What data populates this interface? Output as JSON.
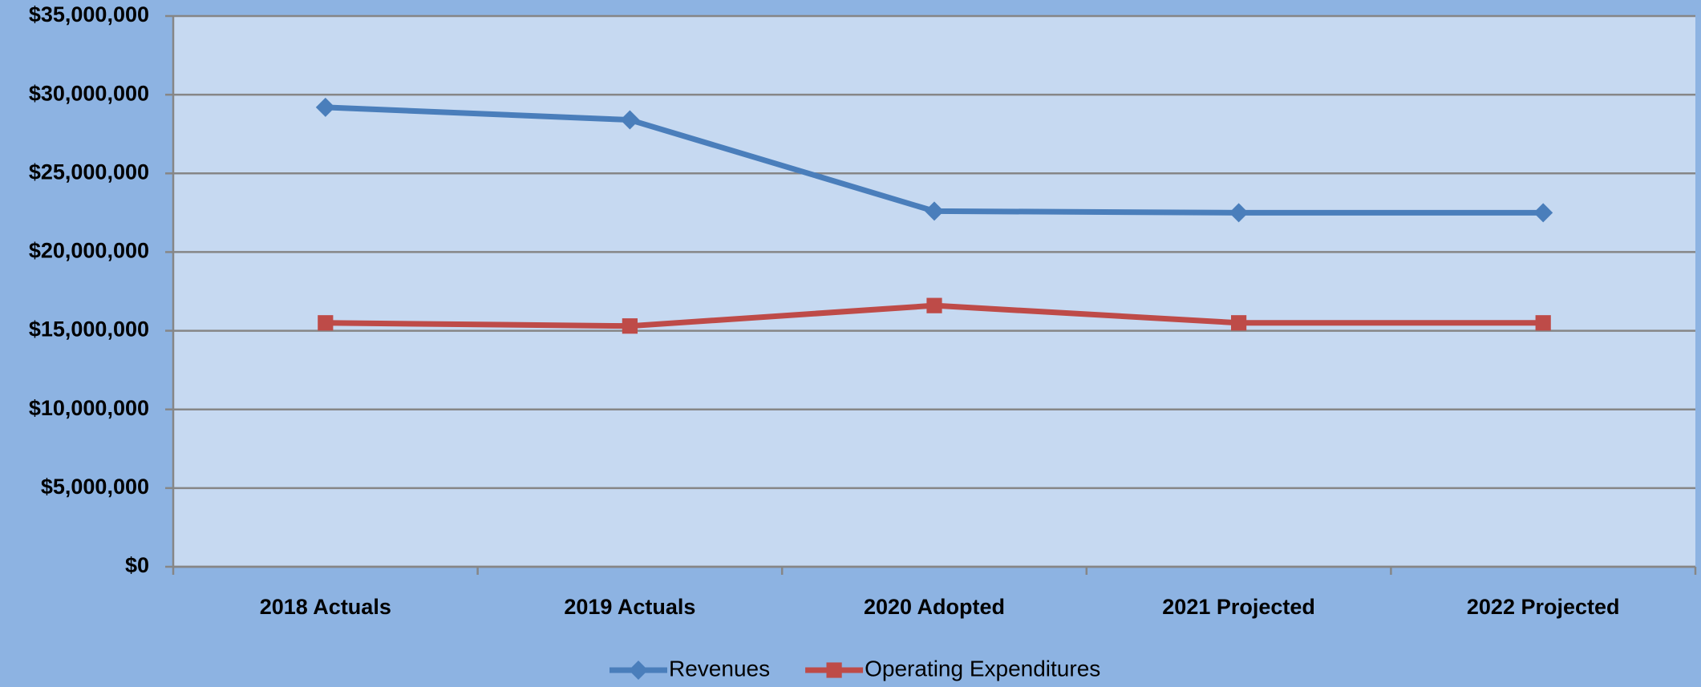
{
  "chart_data": {
    "type": "line",
    "categories": [
      "2018 Actuals",
      "2019 Actuals",
      "2020 Adopted",
      "2021 Projected",
      "2022 Projected"
    ],
    "series": [
      {
        "name": "Revenues",
        "color": "#4a7ebb",
        "marker": "diamond",
        "values": [
          29200000,
          28400000,
          22600000,
          22500000,
          22500000
        ]
      },
      {
        "name": "Operating Expenditures",
        "color": "#be4b48",
        "marker": "square",
        "values": [
          15500000,
          15300000,
          16600000,
          15500000,
          15500000
        ]
      }
    ],
    "ylim": [
      0,
      35000000
    ],
    "yticks": [
      {
        "value": 0,
        "label": "$0"
      },
      {
        "value": 5000000,
        "label": "$5,000,000"
      },
      {
        "value": 10000000,
        "label": "$10,000,000"
      },
      {
        "value": 15000000,
        "label": "$15,000,000"
      },
      {
        "value": 20000000,
        "label": "$20,000,000"
      },
      {
        "value": 25000000,
        "label": "$25,000,000"
      },
      {
        "value": 30000000,
        "label": "$30,000,000"
      },
      {
        "value": 35000000,
        "label": "$35,000,000"
      }
    ],
    "grid": true,
    "legend": "bottom"
  }
}
